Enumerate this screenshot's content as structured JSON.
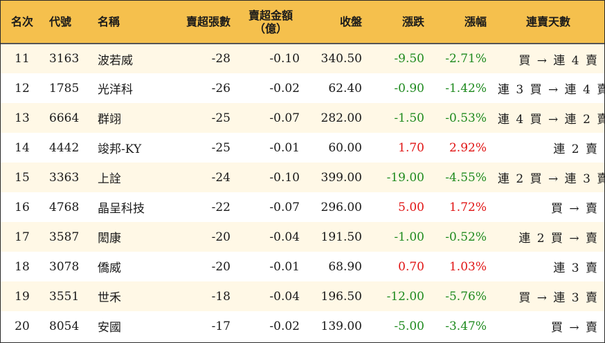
{
  "headers": {
    "rank": "名次",
    "code": "代號",
    "name": "名稱",
    "sell_lots": "賣超張數",
    "sell_amount_line1": "賣超金額",
    "sell_amount_line2": "（億）",
    "close": "收盤",
    "change": "漲跌",
    "change_pct": "漲幅",
    "streak": "連賣天數"
  },
  "rows": [
    {
      "rank": "11",
      "code": "3163",
      "name": "波若威",
      "sell_lots": "-28",
      "sell_amount": "-0.10",
      "close": "340.50",
      "change": "-9.50",
      "change_pct": "-2.71%",
      "direction": "down",
      "streak": "買 → 連 4 賣"
    },
    {
      "rank": "12",
      "code": "1785",
      "name": "光洋科",
      "sell_lots": "-26",
      "sell_amount": "-0.02",
      "close": "62.40",
      "change": "-0.90",
      "change_pct": "-1.42%",
      "direction": "down",
      "streak": "連 3 買 → 連 4 賣"
    },
    {
      "rank": "13",
      "code": "6664",
      "name": "群翊",
      "sell_lots": "-25",
      "sell_amount": "-0.07",
      "close": "282.00",
      "change": "-1.50",
      "change_pct": "-0.53%",
      "direction": "down",
      "streak": "連 4 買 → 連 2 賣"
    },
    {
      "rank": "14",
      "code": "4442",
      "name": "竣邦-KY",
      "sell_lots": "-25",
      "sell_amount": "-0.01",
      "close": "60.00",
      "change": "1.70",
      "change_pct": "2.92%",
      "direction": "up",
      "streak": "連 2 賣"
    },
    {
      "rank": "15",
      "code": "3363",
      "name": "上詮",
      "sell_lots": "-24",
      "sell_amount": "-0.10",
      "close": "399.00",
      "change": "-19.00",
      "change_pct": "-4.55%",
      "direction": "down",
      "streak": "連 2 買 → 連 3 賣"
    },
    {
      "rank": "16",
      "code": "4768",
      "name": "晶呈科技",
      "sell_lots": "-22",
      "sell_amount": "-0.07",
      "close": "296.00",
      "change": "5.00",
      "change_pct": "1.72%",
      "direction": "up",
      "streak": "買 → 賣"
    },
    {
      "rank": "17",
      "code": "3587",
      "name": "閎康",
      "sell_lots": "-20",
      "sell_amount": "-0.04",
      "close": "191.50",
      "change": "-1.00",
      "change_pct": "-0.52%",
      "direction": "down",
      "streak": "連 2 買 → 賣"
    },
    {
      "rank": "18",
      "code": "3078",
      "name": "僑威",
      "sell_lots": "-20",
      "sell_amount": "-0.01",
      "close": "68.90",
      "change": "0.70",
      "change_pct": "1.03%",
      "direction": "up",
      "streak": "連 3 賣"
    },
    {
      "rank": "19",
      "code": "3551",
      "name": "世禾",
      "sell_lots": "-18",
      "sell_amount": "-0.04",
      "close": "196.50",
      "change": "-12.00",
      "change_pct": "-5.76%",
      "direction": "down",
      "streak": "買 → 連 3 賣"
    },
    {
      "rank": "20",
      "code": "8054",
      "name": "安國",
      "sell_lots": "-17",
      "sell_amount": "-0.02",
      "close": "139.00",
      "change": "-5.00",
      "change_pct": "-3.47%",
      "direction": "down",
      "streak": "買 → 賣"
    }
  ],
  "colors": {
    "header_bg": "#f5c04d",
    "row_odd_bg": "#fff8e6",
    "row_even_bg": "#ffffff",
    "down": "#1e8a1e",
    "up": "#e01414"
  }
}
